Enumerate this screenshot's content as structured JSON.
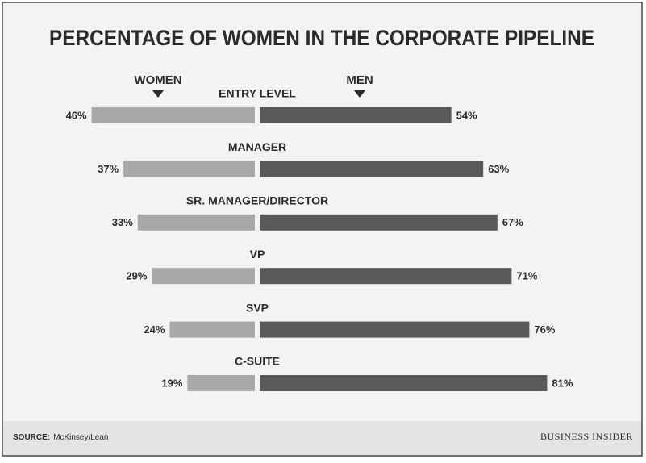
{
  "chart_data": {
    "type": "butterfly",
    "title": "PERCENTAGE OF WOMEN IN THE CORPORATE PIPELINE",
    "categories": [
      "ENTRY LEVEL",
      "MANAGER",
      "SR. MANAGER/DIRECTOR",
      "VP",
      "SVP",
      "C-SUITE"
    ],
    "series": [
      {
        "name": "WOMEN",
        "color": "#a8a8a8",
        "values": [
          46,
          37,
          33,
          29,
          24,
          19
        ],
        "value_labels": [
          "46%",
          "37%",
          "33%",
          "29%",
          "24%",
          "19%"
        ]
      },
      {
        "name": "MEN",
        "color": "#595959",
        "values": [
          54,
          63,
          67,
          71,
          76,
          81
        ],
        "value_labels": [
          "54%",
          "63%",
          "67%",
          "71%",
          "76%",
          "81%"
        ]
      }
    ],
    "source_label": "SOURCE:",
    "source": "McKinsey/Lean",
    "publisher": "BUSINESS INSIDER"
  }
}
